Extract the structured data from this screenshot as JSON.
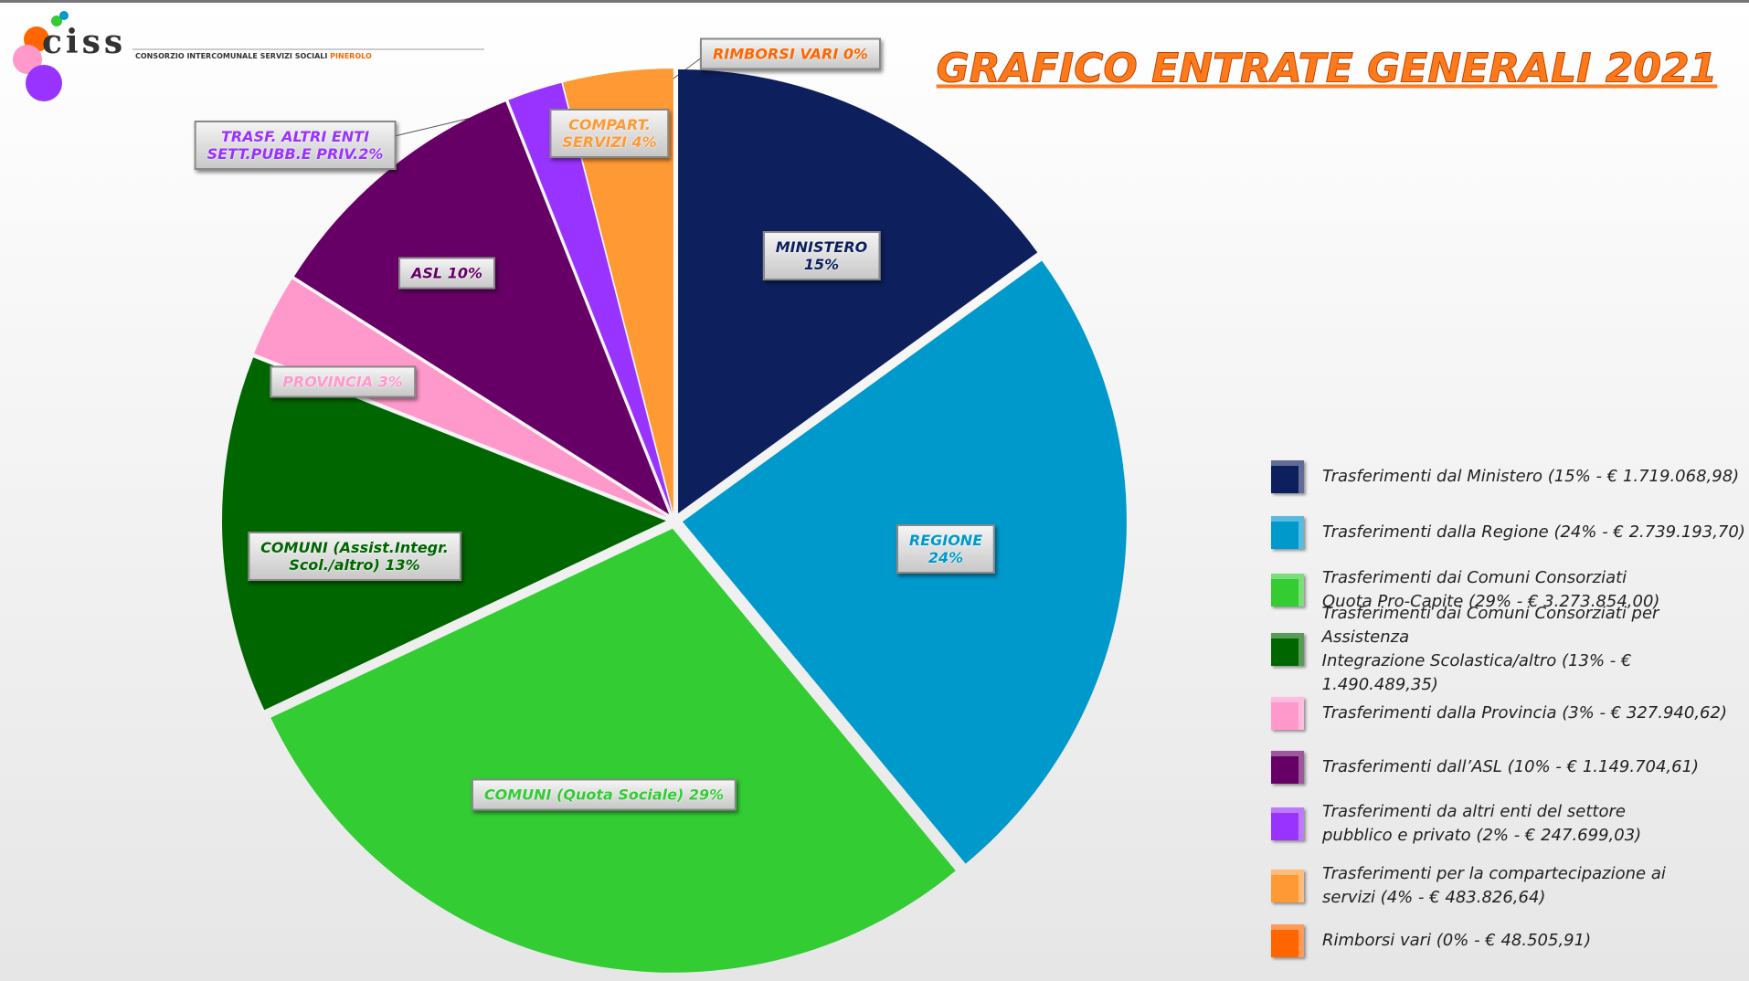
{
  "logo": {
    "name": "ciss",
    "org": "CONSORZIO INTERCOMUNALE SERVIZI SOCIALI",
    "city": "PINEROLO"
  },
  "chart_data": {
    "type": "pie",
    "title": "GRAFICO ENTRATE GENERALI 2021",
    "categories": [
      "Trasferimenti dal Ministero (15% - € 1.719.068,98)",
      "Trasferimenti dalla Regione (24% - € 2.739.193,70)",
      "Trasferimenti dai Comuni Consorziati\nQuota Pro-Capite (29% - € 3.273.854,00)",
      "Trasferimenti dai Comuni Consorziati per Assistenza\nIntegrazione Scolastica/altro (13% - € 1.490.489,35)",
      "Trasferimenti dalla Provincia (3% - € 327.940,62)",
      "Trasferimenti dall’ASL (10% - € 1.149.704,61)",
      "Trasferimenti da altri enti del settore\npubblico e privato (2% - € 247.699,03)",
      "Trasferimenti per la compartecipazione ai\nservizi (4% - € 483.826,64)",
      "Rimborsi vari (0% - € 48.505,91)"
    ],
    "values": [
      15,
      24,
      29,
      13,
      3,
      10,
      2,
      4,
      0
    ],
    "value_labels": [
      "MINISTERO\n15%",
      "REGIONE\n24%",
      "COMUNI (Quota Sociale) 29%",
      "COMUNI (Assist.Integr.\nScol./altro) 13%",
      "PROVINCIA 3%",
      "ASL 10%",
      "TRASF. ALTRI ENTI\nSETT.PUBB.E PRIV.2%",
      "COMPART.\nSERVIZI 4%",
      "RIMBORSI VARI 0%"
    ],
    "colors": [
      "#0d1f5c",
      "#0099cc",
      "#33cc33",
      "#006600",
      "#ff99cc",
      "#660066",
      "#9933ff",
      "#ff9933",
      "#ff6600"
    ]
  }
}
